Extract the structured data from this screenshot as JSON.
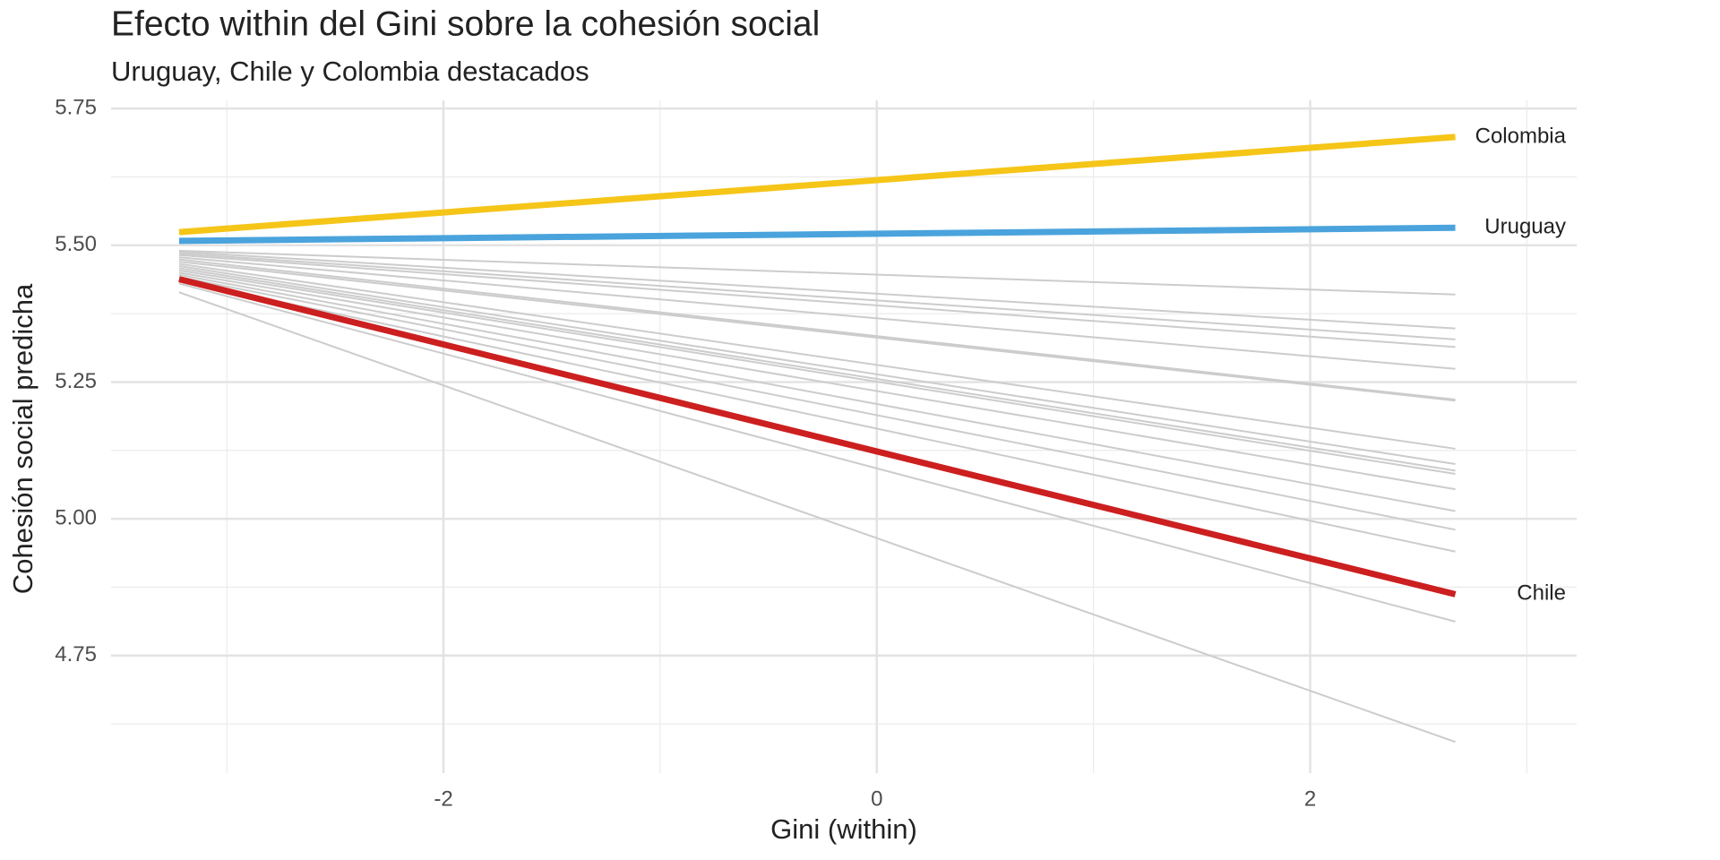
{
  "chart_data": {
    "type": "line",
    "title": "Efecto within del Gini sobre la cohesión social",
    "subtitle": "Uruguay, Chile y Colombia destacados",
    "x_label": "Gini (within)",
    "y_label": "Cohesión social predicha",
    "x": [
      -3.22,
      2.67
    ],
    "xlim": [
      -3.534,
      3.23
    ],
    "xticks": [
      -2,
      0,
      2
    ],
    "x_minor_grid": [
      -3,
      -1,
      1,
      3
    ],
    "ylim": [
      4.535,
      5.765
    ],
    "yticks": [
      {
        "value": 4.75,
        "label": "4.75"
      },
      {
        "value": 5,
        "label": "5.00"
      },
      {
        "value": 5.25,
        "label": "5.25"
      },
      {
        "value": 5.5,
        "label": "5.50"
      },
      {
        "value": 5.75,
        "label": "5.75"
      }
    ],
    "y_minor_grid": [
      4.625,
      4.875,
      5.125,
      5.375,
      5.625
    ],
    "grid": true,
    "series": [
      {
        "color": "#cccccc",
        "values": [
          5.49,
          5.41
        ]
      },
      {
        "color": "#cccccc",
        "values": [
          5.488,
          5.348
        ]
      },
      {
        "color": "#cccccc",
        "values": [
          5.485,
          5.328
        ]
      },
      {
        "color": "#cccccc",
        "values": [
          5.482,
          5.314
        ]
      },
      {
        "color": "#cccccc",
        "values": [
          5.478,
          5.274
        ]
      },
      {
        "color": "#cccccc",
        "values": [
          5.474,
          5.218
        ]
      },
      {
        "color": "#cccccc",
        "values": [
          5.47,
          5.216
        ]
      },
      {
        "color": "#cccccc",
        "values": [
          5.466,
          5.128
        ]
      },
      {
        "color": "#cccccc",
        "values": [
          5.462,
          5.1
        ]
      },
      {
        "color": "#cccccc",
        "values": [
          5.458,
          5.088
        ]
      },
      {
        "color": "#cccccc",
        "values": [
          5.454,
          5.082
        ]
      },
      {
        "color": "#cccccc",
        "values": [
          5.45,
          5.054
        ]
      },
      {
        "color": "#cccccc",
        "values": [
          5.446,
          5.014
        ]
      },
      {
        "color": "#cccccc",
        "values": [
          5.442,
          4.98
        ]
      },
      {
        "color": "#cccccc",
        "values": [
          5.436,
          4.94
        ]
      },
      {
        "color": "#cccccc",
        "values": [
          5.43,
          4.812
        ]
      },
      {
        "color": "#cccccc",
        "values": [
          5.414,
          4.592
        ]
      },
      {
        "name": "Colombia",
        "color": "#f5c518",
        "values": [
          5.524,
          5.698
        ],
        "highlight": true
      },
      {
        "name": "Uruguay",
        "color": "#4aa3dc",
        "values": [
          5.508,
          5.532
        ],
        "highlight": true
      },
      {
        "name": "Chile",
        "color": "#cc1f1f",
        "values": [
          5.438,
          4.862
        ],
        "highlight": true
      }
    ]
  }
}
